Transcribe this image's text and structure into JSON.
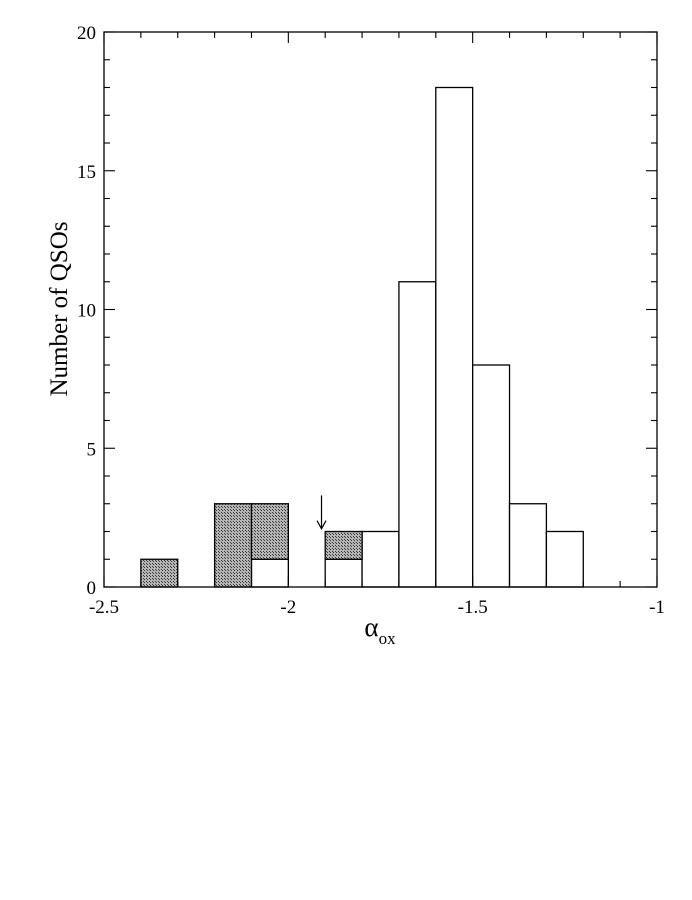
{
  "chart_data": {
    "type": "bar",
    "subtype": "stacked-histogram",
    "xlabel": "α",
    "xlabel_subscript": "ox",
    "ylabel": "Number of QSOs",
    "xlim": [
      -2.5,
      -1
    ],
    "ylim": [
      0,
      20
    ],
    "x_ticks": [
      "-2.5",
      "-2",
      "-1.5",
      "-1"
    ],
    "y_ticks": [
      "0",
      "5",
      "10",
      "15",
      "20"
    ],
    "x_minor_step": 0.1,
    "y_minor_step": 1,
    "ticks_inside": true,
    "mirror_ticks": true,
    "grid": false,
    "bin_width": 0.1,
    "series": [
      {
        "style": "open",
        "color": "#ffffff",
        "bins": [
          {
            "x0": -2.1,
            "x1": -2.0,
            "value": 1
          },
          {
            "x0": -1.9,
            "x1": -1.8,
            "value": 1
          },
          {
            "x0": -1.8,
            "x1": -1.7,
            "value": 2
          },
          {
            "x0": -1.7,
            "x1": -1.6,
            "value": 11
          },
          {
            "x0": -1.6,
            "x1": -1.5,
            "value": 18
          },
          {
            "x0": -1.5,
            "x1": -1.4,
            "value": 8
          },
          {
            "x0": -1.4,
            "x1": -1.3,
            "value": 3
          },
          {
            "x0": -1.3,
            "x1": -1.2,
            "value": 2
          }
        ]
      },
      {
        "style": "hatched",
        "color": "#8a8a8a",
        "bins": [
          {
            "x0": -2.4,
            "x1": -2.3,
            "value": 1
          },
          {
            "x0": -2.2,
            "x1": -2.1,
            "value": 3
          },
          {
            "x0": -2.1,
            "x1": -2.0,
            "value": 2
          },
          {
            "x0": -1.9,
            "x1": -1.8,
            "value": 1
          }
        ]
      }
    ],
    "annotations": [
      {
        "type": "arrow-down",
        "x": -1.91,
        "y_from": 3.3,
        "y_to": 2.1
      }
    ]
  }
}
